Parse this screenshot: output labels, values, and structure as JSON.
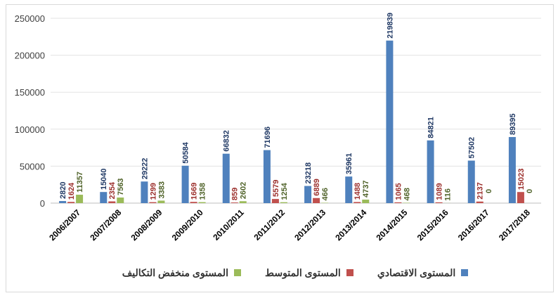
{
  "chart_data": {
    "type": "bar",
    "categories": [
      "2006/2007",
      "2007/2008",
      "2008/2009",
      "2009/2010",
      "2010/2011",
      "2011/2012",
      "2012/2013",
      "2013/2014",
      "2014/2015",
      "2015/2016",
      "2016/2017",
      "2017/2018"
    ],
    "series": [
      {
        "name": "المستوى الاقتصادي",
        "color": "#4f81bd",
        "values": [
          2820,
          15040,
          29222,
          50584,
          66832,
          71696,
          23218,
          35961,
          219839,
          84821,
          57502,
          89395
        ]
      },
      {
        "name": "المستوى المتوسط",
        "color": "#c0504d",
        "values": [
          1624,
          2354,
          1299,
          1669,
          859,
          5579,
          6889,
          1488,
          1065,
          1089,
          2137,
          15023
        ]
      },
      {
        "name": "المستوى منخفض التكاليف",
        "color": "#9bbb59",
        "values": [
          11357,
          7563,
          3383,
          1358,
          2602,
          1254,
          466,
          4737,
          468,
          116,
          0,
          0
        ]
      }
    ],
    "y_ticks": [
      "0",
      "50000",
      "100000",
      "150000",
      "200000",
      "250000"
    ],
    "ylim": [
      0,
      250000
    ],
    "grid": true,
    "legend_position": "bottom"
  }
}
